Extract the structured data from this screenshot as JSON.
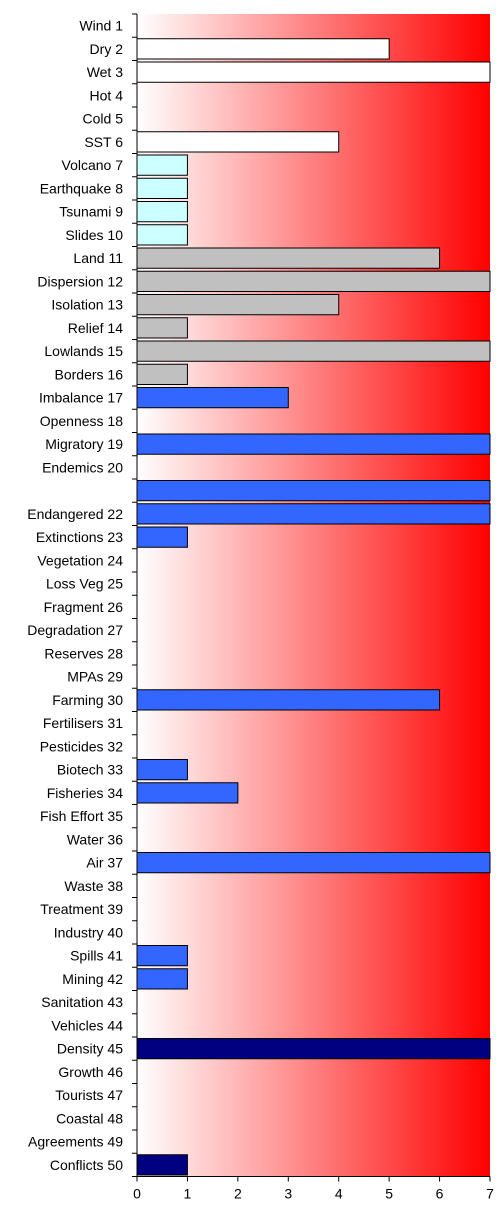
{
  "chart_data": {
    "type": "bar",
    "orientation": "horizontal",
    "title": "",
    "xlabel": "",
    "ylabel": "",
    "xlim": [
      0,
      7
    ],
    "x_ticks": [
      "0",
      "1",
      "2",
      "3",
      "4",
      "5",
      "6",
      "7"
    ],
    "grid": false,
    "legend": "none",
    "background": "gradient white-to-red (left to right)",
    "colors": {
      "gradient_start": "#ffffff",
      "gradient_end": "#ff0000",
      "weather": "#ffffff",
      "geology": "#ccffff",
      "land": "#c0c0c0",
      "biodiversity": "#3366ff",
      "human": "#000080"
    },
    "categories": [
      "Wind 1",
      "Dry 2",
      "Wet 3",
      "Hot 4",
      "Cold 5",
      "SST 6",
      "Volcano 7",
      "Earthquake 8",
      "Tsunami 9",
      "Slides 10",
      "Land 11",
      "Dispersion 12",
      "Isolation 13",
      "Relief 14",
      "Lowlands 15",
      "Borders 16",
      "Imbalance 17",
      "Openness 18",
      "Migratory 19",
      "Endemics 20",
      "",
      "Endangered 22",
      "Extinctions 23",
      "Vegetation 24",
      "Loss Veg 25",
      "Fragment 26",
      "Degradation 27",
      "Reserves 28",
      "MPAs 29",
      "Farming 30",
      "Fertilisers 31",
      "Pesticides 32",
      "Biotech 33",
      "Fisheries 34",
      "Fish Effort 35",
      "Water 36",
      "Air 37",
      "Waste 38",
      "Treatment 39",
      "Industry 40",
      "Spills 41",
      "Mining 42",
      "Sanitation 43",
      "Vehicles 44",
      "Density 45",
      "Growth 46",
      "Tourists 47",
      "Coastal 48",
      "Agreements 49",
      "Conflicts 50"
    ],
    "values": [
      0,
      5,
      7,
      0,
      0,
      4,
      1,
      1,
      1,
      1,
      6,
      7,
      4,
      1,
      7,
      1,
      3,
      0,
      7,
      0,
      7,
      7,
      1,
      0,
      0,
      0,
      0,
      0,
      0,
      6,
      0,
      0,
      1,
      2,
      0,
      0,
      7,
      0,
      0,
      0,
      1,
      1,
      0,
      0,
      7,
      0,
      0,
      0,
      0,
      1
    ],
    "bar_colors": [
      "#ffffff",
      "#ffffff",
      "#ffffff",
      "#ffffff",
      "#ffffff",
      "#ffffff",
      "#ccffff",
      "#ccffff",
      "#ccffff",
      "#ccffff",
      "#c0c0c0",
      "#c0c0c0",
      "#c0c0c0",
      "#c0c0c0",
      "#c0c0c0",
      "#c0c0c0",
      "#3366ff",
      "#3366ff",
      "#3366ff",
      "#3366ff",
      "#3366ff",
      "#3366ff",
      "#3366ff",
      "#3366ff",
      "#3366ff",
      "#3366ff",
      "#3366ff",
      "#3366ff",
      "#3366ff",
      "#3366ff",
      "#3366ff",
      "#3366ff",
      "#3366ff",
      "#3366ff",
      "#3366ff",
      "#3366ff",
      "#3366ff",
      "#3366ff",
      "#3366ff",
      "#3366ff",
      "#3366ff",
      "#3366ff",
      "#3366ff",
      "#3366ff",
      "#000080",
      "#000080",
      "#000080",
      "#000080",
      "#000080",
      "#000080"
    ]
  }
}
